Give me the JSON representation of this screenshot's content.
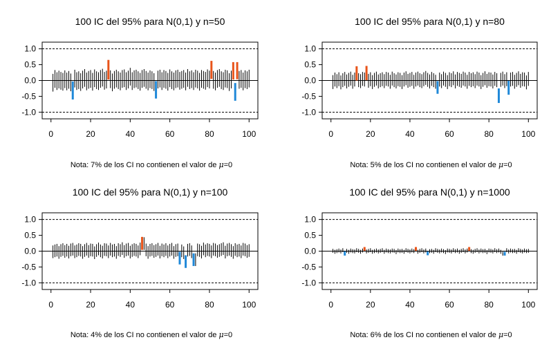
{
  "colors": {
    "contains": "#000000",
    "above": "#e8541a",
    "below": "#1f88d8",
    "frame": "#000000"
  },
  "chart_data": [
    {
      "type": "interval",
      "title": "100 IC del 95% para N(0,1) y n=50",
      "note_prefix": "Nota: 7% de los CI no contienen el valor de ",
      "note_mu": "μ",
      "note_suffix": "=0",
      "xlim": [
        0,
        100
      ],
      "ylim": [
        -1,
        1
      ],
      "xticks": [
        0,
        20,
        40,
        60,
        80,
        100
      ],
      "yticks": [
        "1.0",
        "0.5",
        "0.0",
        "-0.5",
        "-1.0"
      ],
      "reference_lines": [
        1,
        -1
      ],
      "half_width": 0.28,
      "centers": [
        -0.07,
        0.05,
        -0.02,
        0.03,
        -0.01,
        -0.04,
        0.04,
        -0.03,
        0.02,
        -0.06,
        -0.31,
        0.06,
        -0.02,
        0.01,
        -0.05,
        0.03,
        0.08,
        -0.03,
        0.02,
        0.05,
        -0.04,
        0.07,
        0.01,
        -0.02,
        0.05,
        0.09,
        -0.01,
        0.03,
        0.35,
        0.04,
        -0.06,
        0.02,
        0.06,
        0.01,
        -0.03,
        0.05,
        0.07,
        -0.02,
        0.03,
        0.12,
        -0.02,
        0.04,
        0.06,
        0.01,
        -0.04,
        0.05,
        0.08,
        0.02,
        -0.03,
        0.04,
        0.01,
        -0.05,
        -0.3,
        0.03,
        0.06,
        -0.02,
        0.05,
        0.02,
        -0.04,
        0.07,
        0.01,
        -0.03,
        0.04,
        0.06,
        -0.01,
        0.02,
        0.05,
        -0.03,
        0.08,
        0.01,
        0.04,
        -0.02,
        0.06,
        0.03,
        -0.04,
        0.05,
        0.02,
        -0.01,
        0.07,
        0.03,
        0.33,
        0.02,
        -0.03,
        0.05,
        0.08,
        0.01,
        -0.02,
        0.06,
        0.04,
        -0.05,
        0.03,
        0.3,
        0.31,
        -0.36,
        0.02,
        0.05,
        -0.03,
        0.04,
        0.01,
        0.06
      ],
      "misses": [
        {
          "index": 11,
          "lo": -0.6,
          "hi": -0.03,
          "side": "below"
        },
        {
          "index": 29,
          "lo": 0.03,
          "hi": 0.65,
          "side": "above"
        },
        {
          "index": 53,
          "lo": -0.57,
          "hi": -0.02,
          "side": "below"
        },
        {
          "index": 81,
          "lo": 0.05,
          "hi": 0.62,
          "side": "above"
        },
        {
          "index": 92,
          "lo": 0.03,
          "hi": 0.58,
          "side": "above"
        },
        {
          "index": 93,
          "lo": -0.64,
          "hi": -0.08,
          "side": "below"
        },
        {
          "index": 94,
          "lo": 0.04,
          "hi": 0.58,
          "side": "above"
        }
      ]
    },
    {
      "type": "interval",
      "title": "100 IC del 95% para N(0,1) y n=80",
      "note_prefix": "Nota: 5% de los CI no contienen el valor de ",
      "note_mu": "μ",
      "note_suffix": "=0",
      "xlim": [
        0,
        100
      ],
      "ylim": [
        -1,
        1
      ],
      "xticks": [
        0,
        20,
        40,
        60,
        80,
        100
      ],
      "yticks": [
        "1.0",
        "0.5",
        "0.0",
        "-0.5",
        "-1.0"
      ],
      "reference_lines": [
        1,
        -1
      ],
      "half_width": 0.22,
      "centers": [
        -0.05,
        0.03,
        -0.02,
        0.04,
        -0.06,
        0.01,
        0.05,
        -0.03,
        0.02,
        0.06,
        -0.04,
        0.03,
        0.2,
        0.01,
        -0.02,
        0.05,
        0.03,
        0.22,
        -0.01,
        0.04,
        -0.05,
        0.02,
        0.06,
        -0.03,
        0.01,
        0.04,
        -0.02,
        0.05,
        0.03,
        -0.04,
        0.06,
        0.01,
        -0.03,
        0.04,
        0.02,
        -0.05,
        0.03,
        0.07,
        -0.01,
        0.02,
        0.05,
        -0.04,
        0.03,
        0.06,
        0.01,
        -0.02,
        0.04,
        0.08,
        0.02,
        -0.03,
        0.05,
        0.01,
        -0.04,
        -0.2,
        0.03,
        -0.02,
        0.06,
        0.02,
        -0.05,
        0.04,
        0.01,
        0.07,
        -0.03,
        0.05,
        0.02,
        -0.01,
        0.06,
        0.03,
        -0.04,
        0.05,
        0.01,
        0.04,
        -0.02,
        0.06,
        0.03,
        -0.05,
        0.02,
        0.07,
        -0.01,
        0.04,
        0.03,
        -0.03,
        0.05,
        0.01,
        -0.48,
        0.02,
        0.06,
        -0.02,
        0.04,
        -0.22,
        0.03,
        0.05,
        -0.04,
        0.02,
        0.07,
        -0.01,
        0.04,
        0.03,
        -0.06,
        0.05
      ],
      "misses": [
        {
          "index": 13,
          "lo": 0.0,
          "hi": 0.45,
          "side": "above"
        },
        {
          "index": 18,
          "lo": 0.01,
          "hi": 0.46,
          "side": "above"
        },
        {
          "index": 54,
          "lo": -0.42,
          "hi": -0.02,
          "side": "below"
        },
        {
          "index": 85,
          "lo": -0.71,
          "hi": -0.25,
          "side": "below"
        },
        {
          "index": 90,
          "lo": -0.45,
          "hi": -0.01,
          "side": "below"
        }
      ]
    },
    {
      "type": "interval",
      "title": "100 IC del 95% para N(0,1) y n=100",
      "note_prefix": "Nota: 4% de los CI no contienen el valor de ",
      "note_mu": "μ",
      "note_suffix": "=0",
      "xlim": [
        0,
        100
      ],
      "ylim": [
        -1,
        1
      ],
      "xticks": [
        0,
        20,
        40,
        60,
        80,
        100
      ],
      "yticks": [
        "1.0",
        "0.5",
        "0.0",
        "-0.5",
        "-1.0"
      ],
      "reference_lines": [
        1,
        -1
      ],
      "half_width": 0.2,
      "centers": [
        -0.02,
        0.01,
        0.03,
        -0.04,
        0.02,
        0.05,
        -0.01,
        0.03,
        -0.03,
        0.04,
        0.06,
        -0.02,
        0.01,
        0.05,
        0.03,
        -0.04,
        0.02,
        0.06,
        -0.01,
        0.04,
        0.03,
        -0.05,
        0.02,
        0.07,
        0.01,
        -0.03,
        0.05,
        0.04,
        -0.02,
        0.06,
        0.01,
        0.03,
        -0.04,
        0.05,
        0.02,
        0.08,
        -0.01,
        0.04,
        0.06,
        -0.03,
        0.02,
        0.05,
        0.03,
        -0.02,
        0.07,
        0.01,
        0.24,
        0.04,
        -0.04,
        0.03,
        0.05,
        -0.01,
        0.02,
        0.06,
        -0.03,
        0.04,
        0.01,
        0.05,
        -0.02,
        0.03,
        0.06,
        -0.04,
        0.02,
        0.04,
        -0.22,
        0.01,
        -0.05,
        -0.33,
        0.03,
        0.05,
        -0.02,
        0.06,
        -0.27,
        0.04,
        0.02,
        -0.03,
        0.07,
        0.01,
        0.05,
        0.03,
        -0.02,
        0.06,
        0.04,
        -0.01,
        0.02,
        0.05,
        0.08,
        -0.03,
        0.04,
        0.06,
        0.02,
        -0.04,
        0.05,
        0.01,
        0.03,
        -0.02,
        0.06,
        0.04,
        -0.01,
        0.02
      ],
      "misses": [
        {
          "index": 46,
          "lo": 0.04,
          "hi": 0.45,
          "side": "above"
        },
        {
          "index": 65,
          "lo": -0.42,
          "hi": -0.02,
          "side": "below"
        },
        {
          "index": 68,
          "lo": -0.53,
          "hi": -0.13,
          "side": "below"
        },
        {
          "index": 72,
          "lo": -0.47,
          "hi": -0.07,
          "side": "below"
        }
      ]
    },
    {
      "type": "interval",
      "title": "100 IC del 95% para N(0,1) y n=1000",
      "note_prefix": "Nota: 6% de los CI no contienen el valor de ",
      "note_mu": "μ",
      "note_suffix": "=0",
      "xlim": [
        0,
        100
      ],
      "ylim": [
        -1,
        1
      ],
      "xticks": [
        0,
        20,
        40,
        60,
        80,
        100
      ],
      "yticks": [
        "1.0",
        "0.5",
        "0.0",
        "-0.5",
        "-1.0"
      ],
      "reference_lines": [
        1,
        -1
      ],
      "half_width": 0.062,
      "centers": [
        0.01,
        -0.02,
        0.0,
        0.02,
        -0.01,
        0.03,
        -0.07,
        0.01,
        -0.02,
        0.02,
        0.0,
        -0.01,
        0.03,
        0.01,
        -0.02,
        0.02,
        0.07,
        -0.01,
        0.01,
        0.03,
        -0.02,
        0.0,
        0.02,
        -0.01,
        0.01,
        0.03,
        -0.02,
        0.02,
        0.0,
        -0.01,
        0.02,
        0.01,
        -0.03,
        0.02,
        0.0,
        0.01,
        -0.02,
        0.03,
        0.01,
        -0.01,
        0.02,
        0.0,
        0.07,
        -0.02,
        0.01,
        0.03,
        -0.01,
        0.02,
        -0.07,
        0.0,
        0.01,
        -0.02,
        0.03,
        0.01,
        -0.01,
        0.02,
        0.0,
        -0.03,
        0.02,
        0.01,
        -0.01,
        0.03,
        0.0,
        0.02,
        -0.02,
        0.01,
        0.03,
        -0.01,
        0.02,
        0.07,
        0.0,
        -0.02,
        0.01,
        0.03,
        -0.01,
        0.02,
        0.0,
        0.01,
        -0.03,
        0.02,
        0.01,
        -0.01,
        0.03,
        0.0,
        0.02,
        -0.02,
        -0.08,
        0.01,
        0.03,
        -0.01,
        0.02,
        0.0,
        0.01,
        -0.02,
        0.03,
        0.01,
        -0.01,
        0.02,
        0.0,
        0.01
      ],
      "misses": [
        {
          "index": 7,
          "lo": -0.14,
          "hi": -0.01,
          "side": "below"
        },
        {
          "index": 17,
          "lo": 0.01,
          "hi": 0.13,
          "side": "above"
        },
        {
          "index": 43,
          "lo": 0.01,
          "hi": 0.13,
          "side": "above"
        },
        {
          "index": 49,
          "lo": -0.13,
          "hi": -0.01,
          "side": "below"
        },
        {
          "index": 70,
          "lo": 0.01,
          "hi": 0.13,
          "side": "above"
        },
        {
          "index": 88,
          "lo": -0.14,
          "hi": -0.02,
          "side": "below"
        }
      ]
    }
  ]
}
